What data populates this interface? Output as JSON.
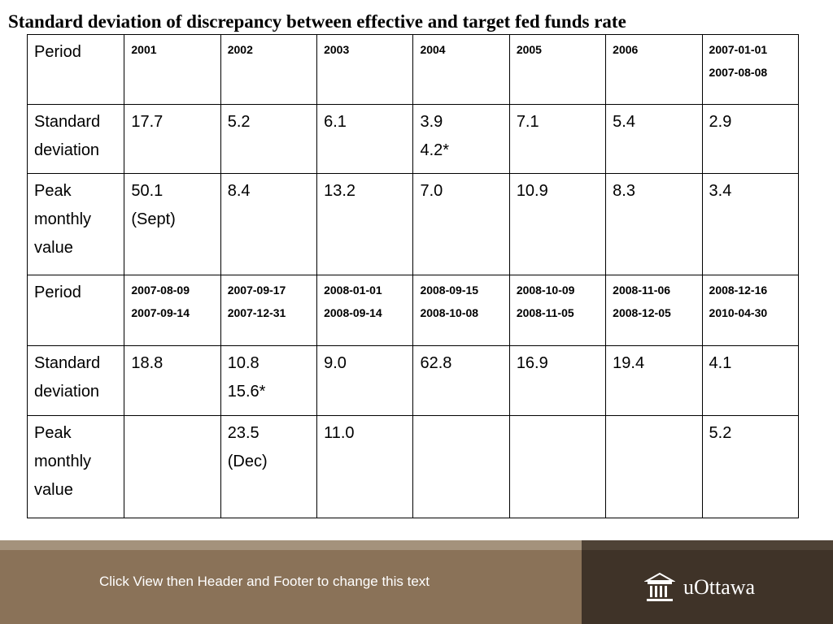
{
  "slide": {
    "title": "Standard deviation of discrepancy between effective and target fed funds rate"
  },
  "table": {
    "rows": [
      {
        "label": "Period",
        "cells": [
          "2001",
          "2002",
          "2003",
          "2004",
          "2005",
          "2006",
          "2007-01-01\n2007-08-08"
        ]
      },
      {
        "label": "Standard\ndeviation",
        "cells": [
          "17.7",
          "5.2",
          "6.1",
          "3.9\n4.2*",
          "7.1",
          "5.4",
          "2.9"
        ]
      },
      {
        "label": "Peak\nmonthly\nvalue",
        "cells": [
          "50.1\n(Sept)",
          "8.4",
          "13.2",
          "7.0",
          "10.9",
          "8.3",
          "3.4"
        ]
      },
      {
        "label": "Period",
        "cells": [
          "2007-08-09\n2007-09-14",
          "2007-09-17\n2007-12-31",
          "2008-01-01\n2008-09-14",
          "2008-09-15\n2008-10-08",
          "2008-10-09\n2008-11-05",
          "2008-11-06\n2008-12-05",
          "2008-12-16\n2010-04-30"
        ]
      },
      {
        "label": "Standard\ndeviation",
        "cells": [
          "18.8",
          "10.8\n15.6*",
          "9.0",
          "62.8",
          "16.9",
          "19.4",
          "4.1"
        ]
      },
      {
        "label": "Peak\nmonthly\nvalue",
        "cells": [
          "",
          "23.5\n(Dec)",
          "11.0",
          "",
          "",
          "",
          "5.2"
        ]
      }
    ]
  },
  "footer": {
    "text": "Click View then Header and Footer to change this text",
    "logo_text": "uOttawa",
    "logo_icon": "building-columns-icon"
  }
}
